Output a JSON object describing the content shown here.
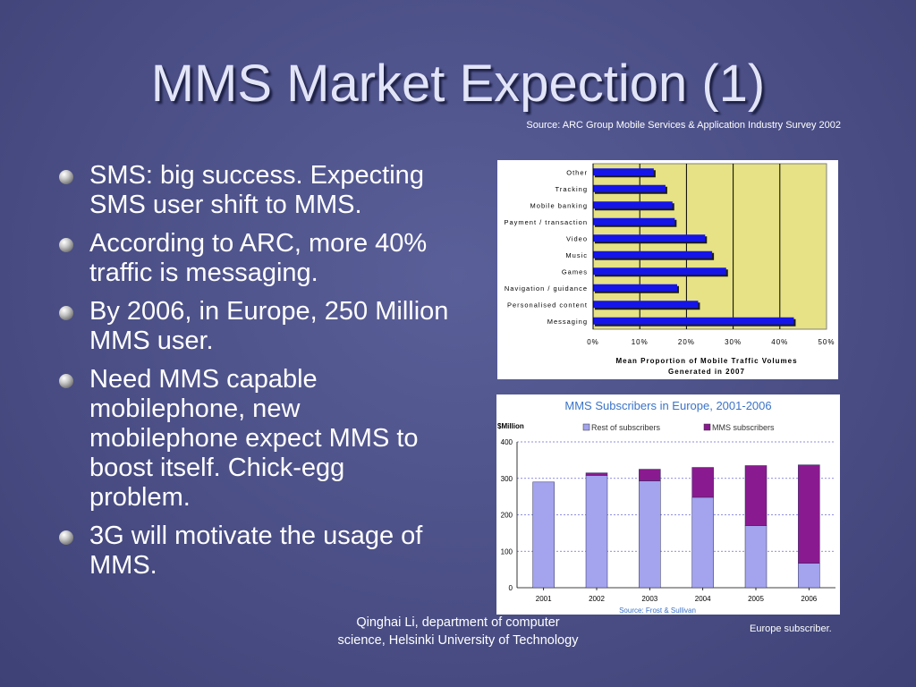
{
  "slide": {
    "title": "MMS Market Expection (1)",
    "source_note": "Source: ARC Group Mobile Services & Application Industry Survey 2002",
    "bullets": [
      "SMS: big success. Expecting SMS user shift to MMS.",
      "According to ARC, more 40% traffic is messaging.",
      "By 2006, in Europe, 250 Million MMS user.",
      "Need MMS capable mobilephone, new mobilephone expect MMS to boost itself. Chick-egg problem.",
      "3G will motivate the usage of MMS."
    ],
    "footer": "Qinghai Li, department of computer science, Helsinki University of Technology",
    "footnote": "Europe subscriber.",
    "colors": {
      "background": "#4b4f86",
      "title": "#e2e4f7",
      "text": "#ffffff"
    },
    "bullet_icon": "sphere-bullet-icon"
  },
  "chart_data": [
    {
      "type": "bar",
      "orientation": "horizontal",
      "categories": [
        "Other",
        "Tracking",
        "Mobile banking",
        "Payment / transaction",
        "Video",
        "Music",
        "Games",
        "Navigation / guidance",
        "Personalised content",
        "Messaging"
      ],
      "values": [
        13,
        15.5,
        17,
        17.5,
        24,
        25.5,
        28.5,
        18,
        22.5,
        43
      ],
      "title": "Mean Proportion of Mobile Traffic Volumes Generated in 2007",
      "xlabel": "",
      "ylabel": "",
      "xlim": [
        0,
        50
      ],
      "x_ticks": [
        "0%",
        "10%",
        "20%",
        "30%",
        "40%",
        "50%"
      ],
      "grid": true,
      "colors": {
        "bar": "#1515e8",
        "plot_bg": "#e6e285"
      }
    },
    {
      "type": "bar",
      "stacked": true,
      "title": "MMS Subscribers in Europe, 2001-2006",
      "ylabel": "$Million",
      "categories": [
        "2001",
        "2002",
        "2003",
        "2004",
        "2005",
        "2006"
      ],
      "series": [
        {
          "name": "Rest of subscribers",
          "values": [
            290,
            308,
            293,
            248,
            170,
            67
          ]
        },
        {
          "name": "MMS subscribers",
          "values": [
            0,
            7,
            32,
            82,
            165,
            270
          ]
        }
      ],
      "ylim": [
        0,
        400
      ],
      "y_ticks": [
        "0",
        "100",
        "200",
        "300",
        "400"
      ],
      "grid": true,
      "legend": "top",
      "source": "Source: Frost & Sullivan",
      "colors": {
        "series_0": "#a3a3ee",
        "series_1": "#8a1a8f",
        "title": "#3b73c8"
      }
    }
  ]
}
